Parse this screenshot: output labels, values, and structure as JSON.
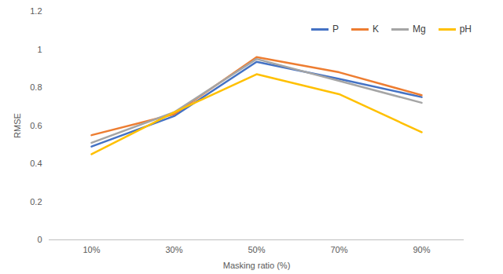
{
  "chart_data": {
    "type": "line",
    "x_label": "Masking ratio (%)",
    "y_label": "RMSE",
    "categories": [
      "10%",
      "30%",
      "50%",
      "70%",
      "90%"
    ],
    "series": [
      {
        "name": "P",
        "color": "#4472c4",
        "values": [
          0.49,
          0.65,
          0.935,
          0.845,
          0.75
        ]
      },
      {
        "name": "K",
        "color": "#ed7d31",
        "values": [
          0.55,
          0.66,
          0.96,
          0.88,
          0.76
        ]
      },
      {
        "name": "Mg",
        "color": "#a5a5a5",
        "values": [
          0.51,
          0.67,
          0.95,
          0.835,
          0.72
        ]
      },
      {
        "name": "pH",
        "color": "#ffc000",
        "values": [
          0.45,
          0.67,
          0.87,
          0.765,
          0.565
        ]
      }
    ],
    "ylim": [
      0,
      1.2
    ],
    "yticks": [
      0,
      0.2,
      0.4,
      0.6,
      0.8,
      1,
      1.2
    ],
    "grid": false,
    "legend": "top-right"
  }
}
